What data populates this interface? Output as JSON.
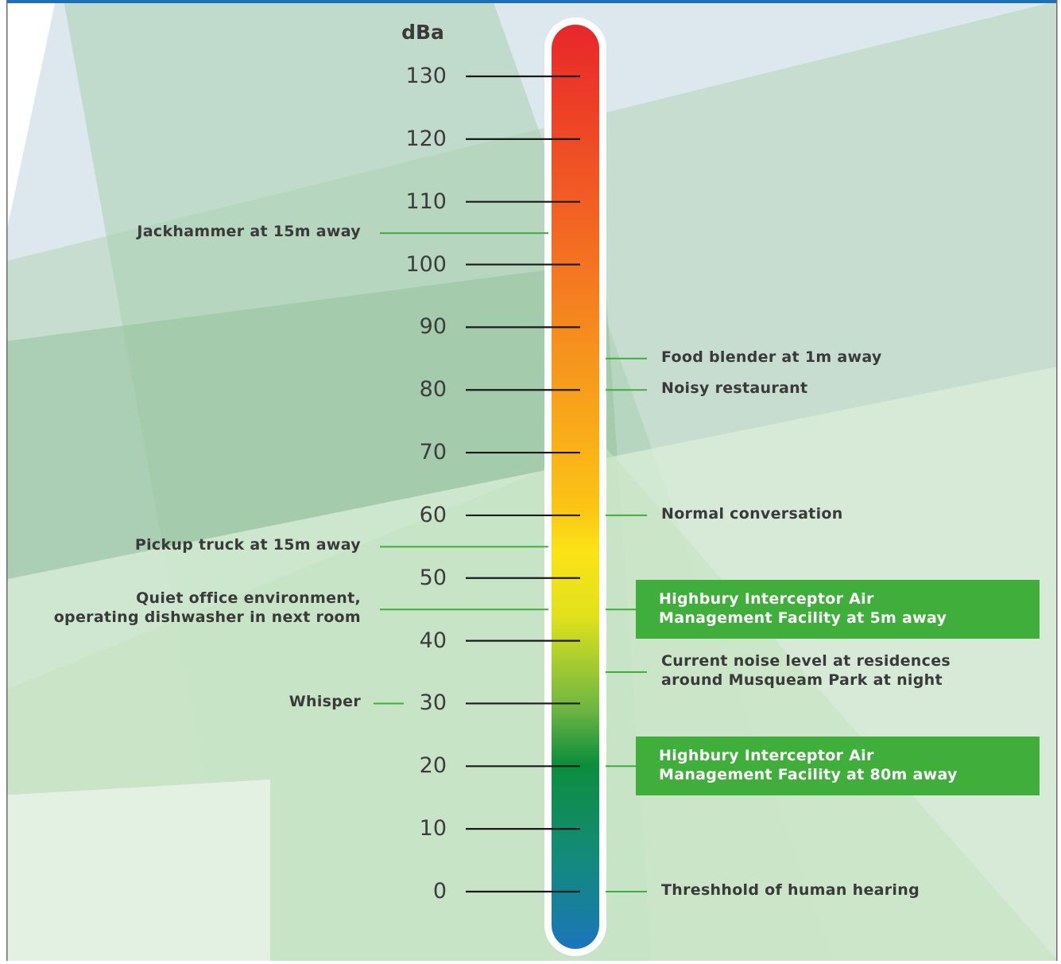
{
  "unit": "dBa",
  "scale": {
    "min": 0,
    "max": 130,
    "ticks": [
      130,
      120,
      110,
      100,
      90,
      80,
      70,
      60,
      50,
      40,
      30,
      20,
      10,
      0
    ],
    "tick_labels": [
      "130",
      "120",
      "110",
      "100",
      "90",
      "80",
      "70",
      "60",
      "50",
      "40",
      "30",
      "20",
      "10",
      "0"
    ]
  },
  "colors": {
    "thermometer_top": "#e8262a",
    "thermometer_orange": "#f6911e",
    "thermometer_yellow": "#f5e61a",
    "thermometer_green": "#0c8e3c",
    "thermometer_bottom": "#1b75bb",
    "highlight_box": "#3fae3b",
    "leader_line": "#3fae3b"
  },
  "left_notes": [
    {
      "lines": [
        "Jackhammer at 15m away"
      ],
      "level": 105
    },
    {
      "lines": [
        "Pickup truck at 15m away"
      ],
      "level": 55
    },
    {
      "lines": [
        "Quiet office environment,",
        "operating dishwasher in next room"
      ],
      "level": 45
    },
    {
      "lines": [
        "Whisper"
      ],
      "level": 30
    }
  ],
  "right_notes": [
    {
      "lines": [
        "Food blender at 1m away"
      ],
      "level": 85
    },
    {
      "lines": [
        "Noisy restaurant"
      ],
      "level": 80
    },
    {
      "lines": [
        "Normal conversation"
      ],
      "level": 60
    },
    {
      "lines": [
        "Current noise level at residences",
        "around Musqueam Park at night"
      ],
      "level": 35
    },
    {
      "lines": [
        "Threshhold of human hearing"
      ],
      "level": 0
    }
  ],
  "highlights": [
    {
      "lines": [
        "Highbury Interceptor Air",
        "Management Facility at 5m away"
      ],
      "level": 45
    },
    {
      "lines": [
        "Highbury Interceptor Air",
        "Management Facility at 80m away"
      ],
      "level": 20
    }
  ]
}
